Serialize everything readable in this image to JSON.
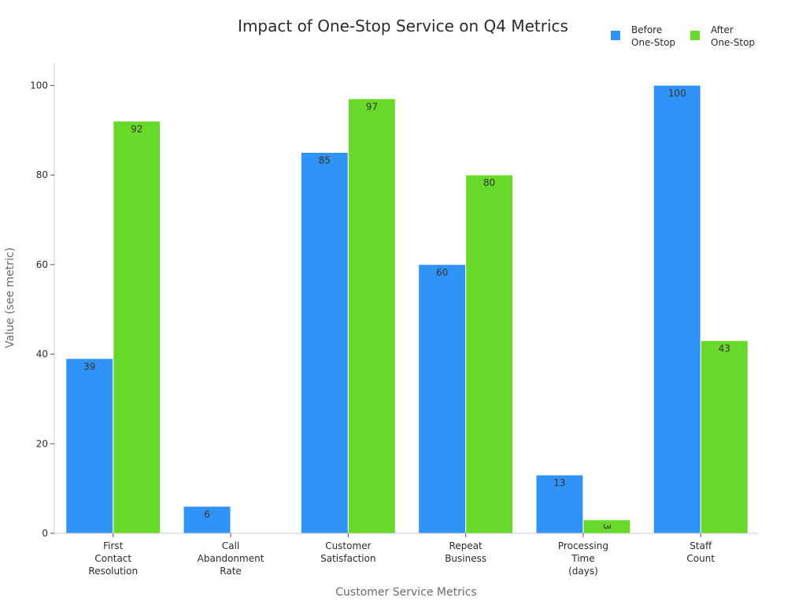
{
  "chart_data": {
    "type": "bar",
    "title": "Impact of One-Stop Service on Q4 Metrics",
    "xlabel": "Customer Service Metrics",
    "ylabel": "Value (see metric)",
    "ylim": [
      0,
      105
    ],
    "yticks": [
      0,
      20,
      40,
      60,
      80,
      100
    ],
    "categories": [
      [
        "First",
        "Contact",
        "Resolution"
      ],
      [
        "Call",
        "Abandonment",
        "Rate"
      ],
      [
        "Customer",
        "Satisfaction"
      ],
      [
        "Repeat",
        "Business"
      ],
      [
        "Processing",
        "Time",
        "(days)"
      ],
      [
        "Staff",
        "Count"
      ]
    ],
    "series": [
      {
        "name": [
          "Before",
          "One-Stop"
        ],
        "color": "#2f93f7",
        "values": [
          39,
          6,
          85,
          60,
          13,
          100
        ]
      },
      {
        "name": [
          "After",
          "One-Stop"
        ],
        "color": "#67d928",
        "values": [
          92,
          0,
          97,
          80,
          3,
          43
        ]
      }
    ],
    "legend_position": "top-right",
    "grid": false
  }
}
